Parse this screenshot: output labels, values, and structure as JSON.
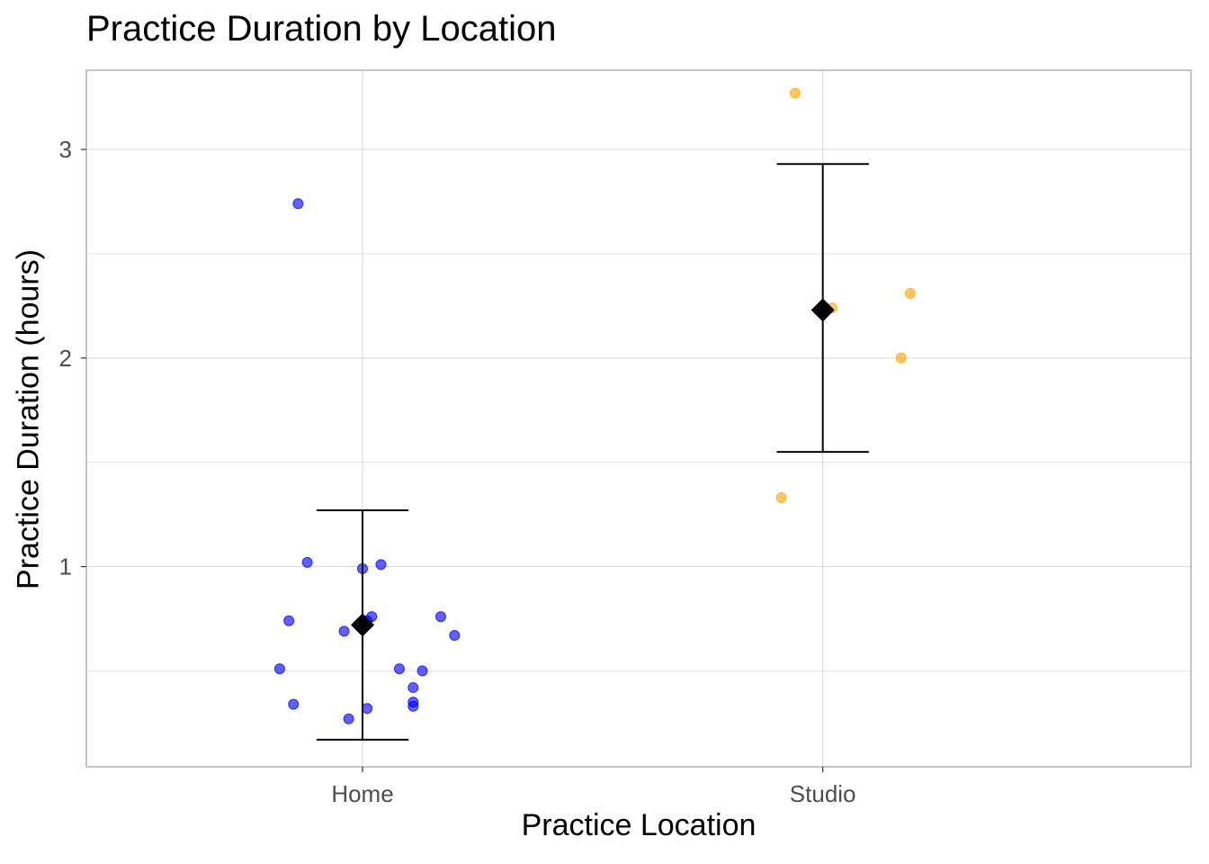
{
  "chart_data": {
    "type": "scatter",
    "title": "Practice Duration by Location",
    "xlabel": "Practice Location",
    "ylabel": "Practice Duration (hours)",
    "categories": [
      "Home",
      "Studio"
    ],
    "ylim": [
      0.04,
      3.38
    ],
    "yticks": [
      1,
      2,
      3
    ],
    "grid": true,
    "legend": "none",
    "series": [
      {
        "category": "Home",
        "color": "#0000ff",
        "points": [
          {
            "jitter": -0.14,
            "y": 2.74
          },
          {
            "jitter": -0.12,
            "y": 1.02
          },
          {
            "jitter": 0.04,
            "y": 1.01
          },
          {
            "jitter": 0.0,
            "y": 0.99
          },
          {
            "jitter": -0.16,
            "y": 0.74
          },
          {
            "jitter": 0.02,
            "y": 0.76
          },
          {
            "jitter": 0.01,
            "y": 0.74
          },
          {
            "jitter": 0.17,
            "y": 0.76
          },
          {
            "jitter": -0.04,
            "y": 0.69
          },
          {
            "jitter": 0.2,
            "y": 0.67
          },
          {
            "jitter": -0.18,
            "y": 0.51
          },
          {
            "jitter": 0.08,
            "y": 0.51
          },
          {
            "jitter": 0.13,
            "y": 0.5
          },
          {
            "jitter": 0.11,
            "y": 0.42
          },
          {
            "jitter": -0.15,
            "y": 0.34
          },
          {
            "jitter": 0.01,
            "y": 0.32
          },
          {
            "jitter": 0.11,
            "y": 0.35
          },
          {
            "jitter": 0.11,
            "y": 0.33
          },
          {
            "jitter": -0.03,
            "y": 0.27
          }
        ],
        "mean": 0.72,
        "error": [
          0.17,
          1.27
        ]
      },
      {
        "category": "Studio",
        "color": "#ffa500",
        "points": [
          {
            "jitter": -0.06,
            "y": 3.27
          },
          {
            "jitter": 0.19,
            "y": 2.31
          },
          {
            "jitter": 0.02,
            "y": 2.24
          },
          {
            "jitter": 0.17,
            "y": 2.0
          },
          {
            "jitter": -0.09,
            "y": 1.33
          }
        ],
        "mean": 2.23,
        "error": [
          1.55,
          2.93
        ]
      }
    ]
  }
}
